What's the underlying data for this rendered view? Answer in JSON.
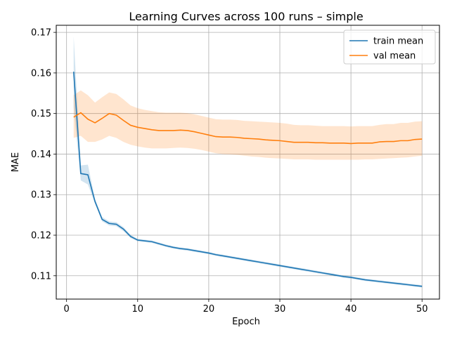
{
  "chart_data": {
    "type": "line",
    "title": "Learning Curves across 100 runs – simple",
    "xlabel": "Epoch",
    "ylabel": "MAE",
    "xlim": [
      -1.45,
      52.45
    ],
    "ylim": [
      0.10425,
      0.17175
    ],
    "xticks": [
      0,
      10,
      20,
      30,
      40,
      50
    ],
    "yticks": [
      0.11,
      0.12,
      0.13,
      0.14,
      0.15,
      0.16,
      0.17
    ],
    "grid": true,
    "legend_position": "top-right",
    "series": [
      {
        "name": "train mean",
        "color": "#1f77b4",
        "band_color": "#1f77b4",
        "band_opacity": 0.2,
        "x": [
          1,
          2,
          3,
          4,
          5,
          6,
          7,
          8,
          9,
          10,
          11,
          12,
          13,
          14,
          15,
          16,
          17,
          18,
          19,
          20,
          21,
          22,
          23,
          24,
          25,
          26,
          27,
          28,
          29,
          30,
          31,
          32,
          33,
          34,
          35,
          36,
          37,
          38,
          39,
          40,
          41,
          42,
          43,
          44,
          45,
          46,
          47,
          48,
          49,
          50
        ],
        "y": [
          0.1603,
          0.1352,
          0.1349,
          0.1283,
          0.1239,
          0.1229,
          0.1227,
          0.1215,
          0.1197,
          0.1188,
          0.1186,
          0.1184,
          0.1179,
          0.1174,
          0.117,
          0.1167,
          0.1165,
          0.1162,
          0.1159,
          0.1156,
          0.1152,
          0.1149,
          0.1146,
          0.1143,
          0.114,
          0.1137,
          0.1134,
          0.1131,
          0.1128,
          0.1125,
          0.1122,
          0.1119,
          0.1116,
          0.1113,
          0.111,
          0.1107,
          0.1104,
          0.1101,
          0.1098,
          0.1096,
          0.1093,
          0.109,
          0.1088,
          0.1086,
          0.1084,
          0.1082,
          0.108,
          0.1078,
          0.1076,
          0.1074
        ],
        "lower": [
          0.1515,
          0.1335,
          0.1325,
          0.1278,
          0.1234,
          0.1224,
          0.1222,
          0.121,
          0.1193,
          0.1185,
          0.1183,
          0.1181,
          0.1176,
          0.1171,
          0.1167,
          0.1164,
          0.1162,
          0.1159,
          0.1156,
          0.1153,
          0.1149,
          0.1146,
          0.1143,
          0.114,
          0.1137,
          0.1134,
          0.1131,
          0.1128,
          0.1125,
          0.1122,
          0.1119,
          0.1116,
          0.1113,
          0.111,
          0.1107,
          0.1104,
          0.1101,
          0.1098,
          0.1095,
          0.1093,
          0.109,
          0.1087,
          0.1085,
          0.1083,
          0.1081,
          0.1079,
          0.1077,
          0.1075,
          0.1073,
          0.1071
        ],
        "upper": [
          0.169,
          0.1372,
          0.1374,
          0.129,
          0.1245,
          0.1234,
          0.1232,
          0.122,
          0.1201,
          0.1191,
          0.1189,
          0.1187,
          0.1182,
          0.1177,
          0.1173,
          0.117,
          0.1168,
          0.1165,
          0.1162,
          0.1159,
          0.1155,
          0.1152,
          0.1149,
          0.1146,
          0.1143,
          0.114,
          0.1137,
          0.1134,
          0.1131,
          0.1128,
          0.1125,
          0.1122,
          0.1119,
          0.1116,
          0.1113,
          0.111,
          0.1107,
          0.1104,
          0.1101,
          0.1099,
          0.1096,
          0.1093,
          0.1091,
          0.1089,
          0.1087,
          0.1085,
          0.1083,
          0.1081,
          0.1079,
          0.1077
        ]
      },
      {
        "name": "val mean",
        "color": "#ff7f0e",
        "band_color": "#ff7f0e",
        "band_opacity": 0.2,
        "x": [
          1,
          2,
          3,
          4,
          5,
          6,
          7,
          8,
          9,
          10,
          11,
          12,
          13,
          14,
          15,
          16,
          17,
          18,
          19,
          20,
          21,
          22,
          23,
          24,
          25,
          26,
          27,
          28,
          29,
          30,
          31,
          32,
          33,
          34,
          35,
          36,
          37,
          38,
          39,
          40,
          41,
          42,
          43,
          44,
          45,
          46,
          47,
          48,
          49,
          50
        ],
        "y": [
          0.1491,
          0.1502,
          0.1486,
          0.1477,
          0.1488,
          0.15,
          0.1496,
          0.1483,
          0.1471,
          0.1466,
          0.1463,
          0.146,
          0.1458,
          0.1458,
          0.1458,
          0.1459,
          0.1458,
          0.1455,
          0.1451,
          0.1447,
          0.1443,
          0.1442,
          0.1442,
          0.1441,
          0.1439,
          0.1438,
          0.1437,
          0.1435,
          0.1434,
          0.1433,
          0.1431,
          0.1429,
          0.1429,
          0.1429,
          0.1428,
          0.1428,
          0.1427,
          0.1427,
          0.1427,
          0.1426,
          0.1427,
          0.1427,
          0.1427,
          0.143,
          0.1431,
          0.1431,
          0.1433,
          0.1433,
          0.1436,
          0.1437
        ],
        "lower": [
          0.144,
          0.1445,
          0.143,
          0.143,
          0.1436,
          0.1445,
          0.144,
          0.143,
          0.1423,
          0.1419,
          0.1416,
          0.1414,
          0.1414,
          0.1414,
          0.1415,
          0.1416,
          0.1415,
          0.1413,
          0.141,
          0.1406,
          0.1402,
          0.14,
          0.1399,
          0.1398,
          0.1396,
          0.1394,
          0.1393,
          0.1391,
          0.139,
          0.1389,
          0.1388,
          0.1387,
          0.1387,
          0.1387,
          0.1386,
          0.1386,
          0.1386,
          0.1386,
          0.1386,
          0.1386,
          0.1386,
          0.1387,
          0.1387,
          0.1388,
          0.1389,
          0.139,
          0.1391,
          0.1392,
          0.1394,
          0.1396
        ],
        "upper": [
          0.1545,
          0.1557,
          0.1545,
          0.1527,
          0.154,
          0.1552,
          0.1548,
          0.1535,
          0.152,
          0.1513,
          0.1509,
          0.1506,
          0.1503,
          0.1502,
          0.1502,
          0.1502,
          0.1501,
          0.1498,
          0.1494,
          0.149,
          0.1486,
          0.1485,
          0.1485,
          0.1484,
          0.1482,
          0.1481,
          0.148,
          0.1479,
          0.1478,
          0.1477,
          0.1475,
          0.1472,
          0.1471,
          0.1471,
          0.147,
          0.1469,
          0.1469,
          0.1469,
          0.1469,
          0.1468,
          0.1469,
          0.1469,
          0.1469,
          0.1472,
          0.1474,
          0.1474,
          0.1477,
          0.1477,
          0.148,
          0.1481
        ]
      }
    ]
  }
}
